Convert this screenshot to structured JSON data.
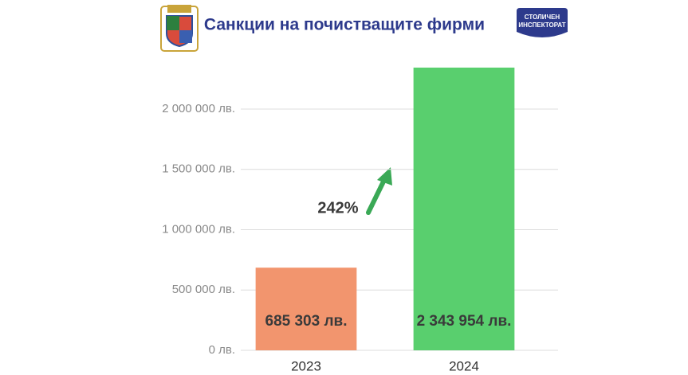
{
  "chart_data": {
    "type": "bar",
    "title": "Санкции на почистващите фирми",
    "categories": [
      "2023",
      "2024"
    ],
    "values": [
      685303,
      2343954
    ],
    "value_labels": [
      "685 303 лв.",
      "2 343 954 лв."
    ],
    "colors": [
      "#f2956e",
      "#59cf6e"
    ],
    "ylim": [
      0,
      2400000
    ],
    "yticks": [
      {
        "value": 0,
        "label": "0 лв."
      },
      {
        "value": 500000,
        "label": "500 000 лв."
      },
      {
        "value": 1000000,
        "label": "1 000 000 лв."
      },
      {
        "value": 1500000,
        "label": "1 500 000 лв."
      },
      {
        "value": 2000000,
        "label": "2 000 000 лв."
      }
    ],
    "grid": true,
    "annotation": "242%"
  },
  "badge_text": [
    "СТОЛИЧЕН",
    "ИНСПЕКТОРАТ"
  ]
}
